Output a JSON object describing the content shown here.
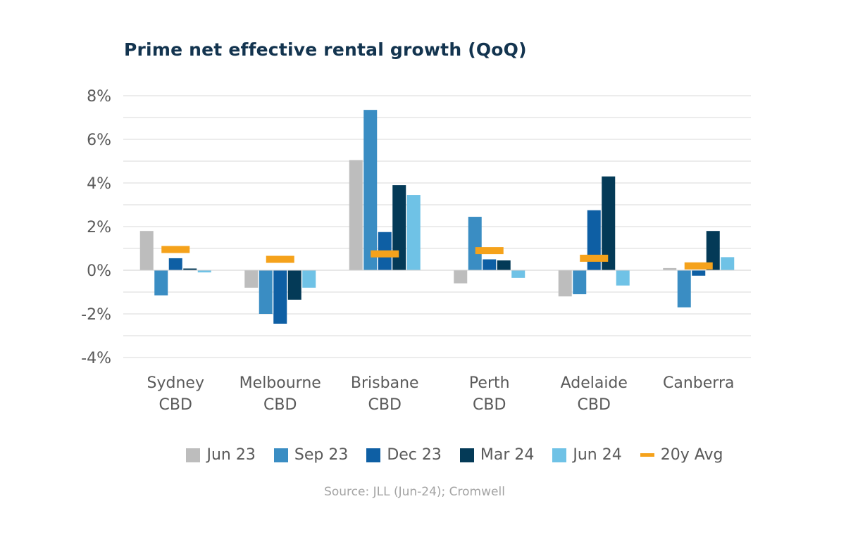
{
  "title": "Prime net effective rental growth (QoQ)",
  "source": "Source: JLL (Jun-24); Cromwell",
  "chart_data": {
    "type": "bar",
    "title": "Prime net effective rental growth (QoQ)",
    "xlabel": "",
    "ylabel": "",
    "ylim": [
      -4,
      8
    ],
    "yticks": [
      8,
      6,
      4,
      2,
      0,
      -2,
      -4
    ],
    "ytick_labels": [
      "8%",
      "6%",
      "4%",
      "2%",
      "0%",
      "-2%",
      "-4%"
    ],
    "grid": true,
    "legend_position": "bottom",
    "categories": [
      [
        "Sydney",
        "CBD"
      ],
      [
        "Melbourne",
        "CBD"
      ],
      [
        "Brisbane",
        "CBD"
      ],
      [
        "Perth",
        "CBD"
      ],
      [
        "Adelaide",
        "CBD"
      ],
      [
        "Canberra"
      ]
    ],
    "series": [
      {
        "name": "Jun 23",
        "color": "#bdbdbd",
        "values": [
          1.8,
          -0.8,
          5.05,
          -0.6,
          -1.2,
          0.1
        ]
      },
      {
        "name": "Sep 23",
        "color": "#3a8dc3",
        "values": [
          -1.15,
          -2.0,
          7.35,
          2.45,
          -1.1,
          -1.7
        ]
      },
      {
        "name": "Dec 23",
        "color": "#0e5fa4",
        "values": [
          0.55,
          -2.45,
          1.75,
          0.5,
          2.75,
          -0.25
        ]
      },
      {
        "name": "Mar 24",
        "color": "#043a57",
        "values": [
          0.08,
          -1.35,
          3.9,
          0.45,
          4.3,
          1.8
        ]
      },
      {
        "name": "Jun 24",
        "color": "#6fc2e6",
        "values": [
          -0.1,
          -0.8,
          3.45,
          -0.35,
          -0.7,
          0.6
        ]
      }
    ],
    "average": {
      "name": "20y Avg",
      "color": "#f5a21b",
      "values": [
        0.95,
        0.5,
        0.75,
        0.9,
        0.55,
        0.2
      ]
    }
  }
}
